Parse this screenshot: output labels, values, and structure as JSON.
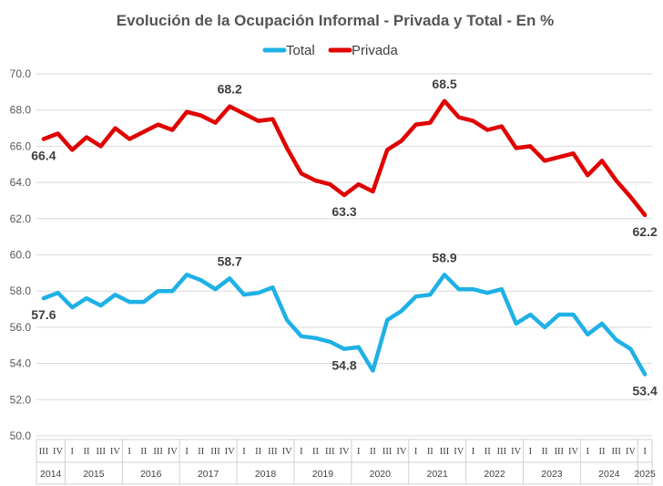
{
  "chart_data": {
    "type": "line",
    "title": "Evolución de la Ocupación Informal - Privada y Total - En %",
    "ylim": [
      50,
      70
    ],
    "yticks": [
      "70.0",
      "68.0",
      "66.0",
      "64.0",
      "62.0",
      "60.0",
      "58.0",
      "56.0",
      "54.0",
      "52.0",
      "50.0"
    ],
    "quarters": [
      "III",
      "IV",
      "I",
      "II",
      "III",
      "IV",
      "I",
      "II",
      "III",
      "IV",
      "I",
      "II",
      "III",
      "IV",
      "I",
      "II",
      "III",
      "IV",
      "I",
      "II",
      "III",
      "IV",
      "I",
      "II",
      "III",
      "IV",
      "I",
      "II",
      "III",
      "IV",
      "I",
      "II",
      "III",
      "IV",
      "I",
      "II",
      "III",
      "IV",
      "I",
      "II",
      "III",
      "IV",
      "I"
    ],
    "years": [
      {
        "label": "2014",
        "count": 2
      },
      {
        "label": "2015",
        "count": 4
      },
      {
        "label": "2016",
        "count": 4
      },
      {
        "label": "2017",
        "count": 4
      },
      {
        "label": "2018",
        "count": 4
      },
      {
        "label": "2019",
        "count": 4
      },
      {
        "label": "2020",
        "count": 4
      },
      {
        "label": "2021",
        "count": 4
      },
      {
        "label": "2022",
        "count": 4
      },
      {
        "label": "2023",
        "count": 4
      },
      {
        "label": "2024",
        "count": 4
      },
      {
        "label": "2025",
        "count": 1
      }
    ],
    "series": [
      {
        "name": "Total",
        "color": "#1fb1e6",
        "values": [
          57.6,
          57.9,
          57.1,
          57.6,
          57.2,
          57.8,
          57.4,
          57.4,
          58.0,
          58.0,
          58.9,
          58.6,
          58.1,
          58.7,
          57.8,
          57.9,
          58.2,
          56.4,
          55.5,
          55.4,
          55.2,
          54.8,
          54.9,
          53.6,
          56.4,
          56.9,
          57.7,
          57.8,
          58.9,
          58.1,
          58.1,
          57.9,
          58.1,
          56.2,
          56.7,
          56.0,
          56.7,
          56.7,
          55.6,
          56.2,
          55.3,
          54.8,
          53.4
        ],
        "labels": [
          {
            "index": 0,
            "text": "57.6",
            "position": "below"
          },
          {
            "index": 13,
            "text": "58.7",
            "position": "above"
          },
          {
            "index": 21,
            "text": "54.8",
            "position": "below"
          },
          {
            "index": 28,
            "text": "58.9",
            "position": "above"
          },
          {
            "index": 42,
            "text": "53.4",
            "position": "below"
          }
        ]
      },
      {
        "name": "Privada",
        "color": "#e00000",
        "values": [
          66.4,
          66.7,
          65.8,
          66.5,
          66.0,
          67.0,
          66.4,
          66.8,
          67.2,
          66.9,
          67.9,
          67.7,
          67.3,
          68.2,
          67.8,
          67.4,
          67.5,
          65.9,
          64.5,
          64.1,
          63.9,
          63.3,
          63.9,
          63.5,
          65.8,
          66.3,
          67.2,
          67.3,
          68.5,
          67.6,
          67.4,
          66.9,
          67.1,
          65.9,
          66.0,
          65.2,
          65.4,
          65.6,
          64.4,
          65.2,
          64.1,
          63.2,
          62.2
        ],
        "labels": [
          {
            "index": 0,
            "text": "66.4",
            "position": "below"
          },
          {
            "index": 13,
            "text": "68.2",
            "position": "above"
          },
          {
            "index": 21,
            "text": "63.3",
            "position": "below"
          },
          {
            "index": 28,
            "text": "68.5",
            "position": "above"
          },
          {
            "index": 42,
            "text": "62.2",
            "position": "below"
          }
        ]
      }
    ]
  }
}
